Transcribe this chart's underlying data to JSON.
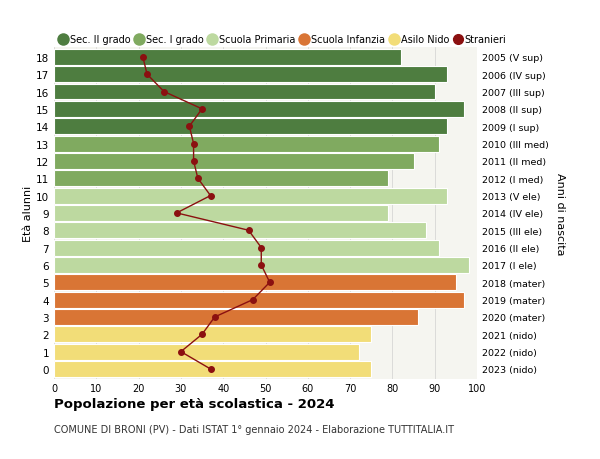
{
  "ages": [
    18,
    17,
    16,
    15,
    14,
    13,
    12,
    11,
    10,
    9,
    8,
    7,
    6,
    5,
    4,
    3,
    2,
    1,
    0
  ],
  "right_labels": [
    "2005 (V sup)",
    "2006 (IV sup)",
    "2007 (III sup)",
    "2008 (II sup)",
    "2009 (I sup)",
    "2010 (III med)",
    "2011 (II med)",
    "2012 (I med)",
    "2013 (V ele)",
    "2014 (IV ele)",
    "2015 (III ele)",
    "2016 (II ele)",
    "2017 (I ele)",
    "2018 (mater)",
    "2019 (mater)",
    "2020 (mater)",
    "2021 (nido)",
    "2022 (nido)",
    "2023 (nido)"
  ],
  "bar_values": [
    82,
    93,
    90,
    97,
    93,
    91,
    85,
    79,
    93,
    79,
    88,
    91,
    98,
    95,
    97,
    86,
    75,
    72,
    75
  ],
  "bar_colors": [
    "#4e7d40",
    "#4e7d40",
    "#4e7d40",
    "#4e7d40",
    "#4e7d40",
    "#80aa60",
    "#80aa60",
    "#80aa60",
    "#bdd9a0",
    "#bdd9a0",
    "#bdd9a0",
    "#bdd9a0",
    "#bdd9a0",
    "#d97535",
    "#d97535",
    "#d97535",
    "#f2dd78",
    "#f2dd78",
    "#f2dd78"
  ],
  "stranieri_values": [
    21,
    22,
    26,
    35,
    32,
    33,
    33,
    34,
    37,
    29,
    46,
    49,
    49,
    51,
    47,
    38,
    35,
    30,
    37
  ],
  "stranieri_color": "#8b1010",
  "legend_labels": [
    "Sec. II grado",
    "Sec. I grado",
    "Scuola Primaria",
    "Scuola Infanzia",
    "Asilo Nido",
    "Stranieri"
  ],
  "legend_colors": [
    "#4e7d40",
    "#80aa60",
    "#bdd9a0",
    "#d97535",
    "#f2dd78",
    "#8b1010"
  ],
  "ylabel_left": "Età alunni",
  "ylabel_right": "Anni di nascita",
  "xlim": [
    0,
    100
  ],
  "xticks": [
    0,
    10,
    20,
    30,
    40,
    50,
    60,
    70,
    80,
    90,
    100
  ],
  "title": "Popolazione per età scolastica - 2024",
  "subtitle": "COMUNE DI BRONI (PV) - Dati ISTAT 1° gennaio 2024 - Elaborazione TUTTITALIA.IT",
  "bg_color": "#f5f5f0",
  "grid_color": "#d0d0d0"
}
